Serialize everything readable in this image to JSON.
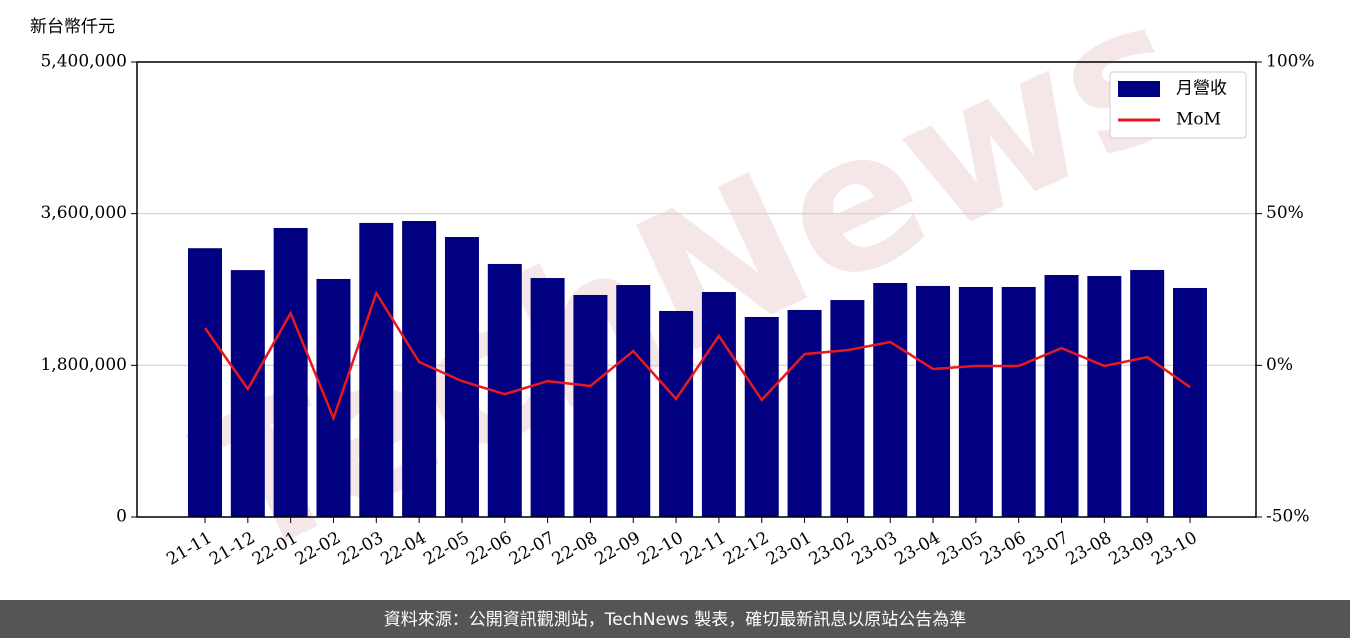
{
  "chart_data": {
    "type": "combo",
    "y_label": "新台幣仟元",
    "watermark": "TechNews",
    "footer": "資料來源：公開資訊觀測站，TechNews 製表，確切最新訊息以原站公告為準",
    "categories": [
      "21-11",
      "21-12",
      "22-01",
      "22-02",
      "22-03",
      "22-04",
      "22-05",
      "22-06",
      "22-07",
      "22-08",
      "22-09",
      "22-10",
      "22-11",
      "22-12",
      "23-01",
      "23-02",
      "23-03",
      "23-04",
      "23-05",
      "23-06",
      "23-07",
      "23-08",
      "23-09",
      "23-10"
    ],
    "series": [
      {
        "name": "月營收",
        "type": "bar",
        "color": "#000080",
        "values": [
          3190000,
          2930000,
          3430000,
          2825000,
          3490000,
          3513000,
          3323000,
          3003000,
          2836000,
          2635000,
          2753000,
          2445000,
          2670000,
          2374000,
          2457000,
          2575000,
          2777000,
          2742000,
          2730000,
          2730000,
          2872000,
          2860000,
          2931000,
          2718000
        ]
      },
      {
        "name": "MoM",
        "type": "line",
        "axis": "y2",
        "color": "#e8191e",
        "values": [
          12.3,
          -7.8,
          17.2,
          -17.4,
          23.8,
          1.1,
          -5.2,
          -9.5,
          -5.2,
          -6.8,
          4.7,
          -11.1,
          9.7,
          -11.4,
          3.7,
          5.0,
          7.7,
          -1.2,
          -0.2,
          -0.2,
          5.7,
          -0.2,
          2.7,
          -7.2
        ]
      }
    ],
    "ylim": [
      0,
      5400000
    ],
    "yticks": [
      0,
      {
        "value": 1800000,
        "label": "1,800,000"
      },
      {
        "value": 3600000,
        "label": "3,600,000"
      },
      {
        "value": 5400000,
        "label": "5,400,000"
      }
    ],
    "y2lim": [
      -50,
      100
    ],
    "y2ticks": [
      {
        "value": -50,
        "label": "-50%"
      },
      {
        "value": 0,
        "label": "0%"
      },
      {
        "value": 50,
        "label": "50%"
      },
      {
        "value": 100,
        "label": "100%"
      }
    ],
    "grid": true,
    "legend": "upper right"
  }
}
